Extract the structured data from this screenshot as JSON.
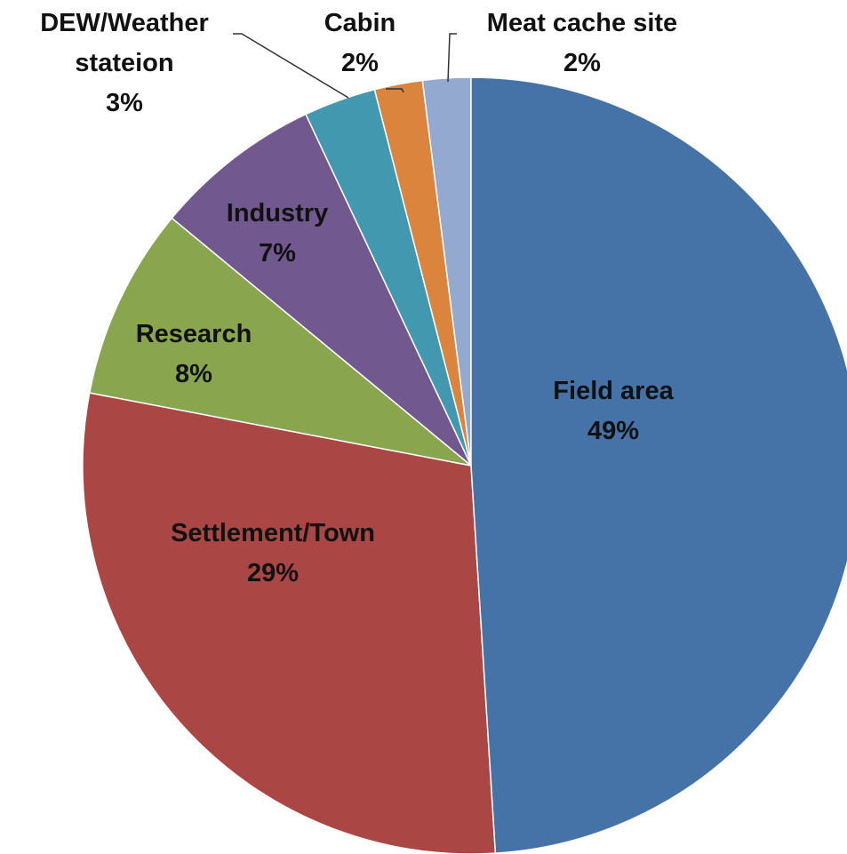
{
  "chart_data": {
    "type": "pie",
    "categories": [
      "Field area",
      "Settlement/Town",
      "Research",
      "Industry",
      "DEW/Weather stateion",
      "Cabin",
      "Meat cache site"
    ],
    "values": [
      49,
      29,
      8,
      7,
      3,
      2,
      2
    ],
    "value_labels": [
      "49%",
      "29%",
      "8%",
      "7%",
      "3%",
      "2%",
      "2%"
    ],
    "colors": [
      "#4572a7",
      "#aa4643",
      "#89a54e",
      "#71588f",
      "#4198af",
      "#db843d",
      "#93a9cf"
    ]
  }
}
